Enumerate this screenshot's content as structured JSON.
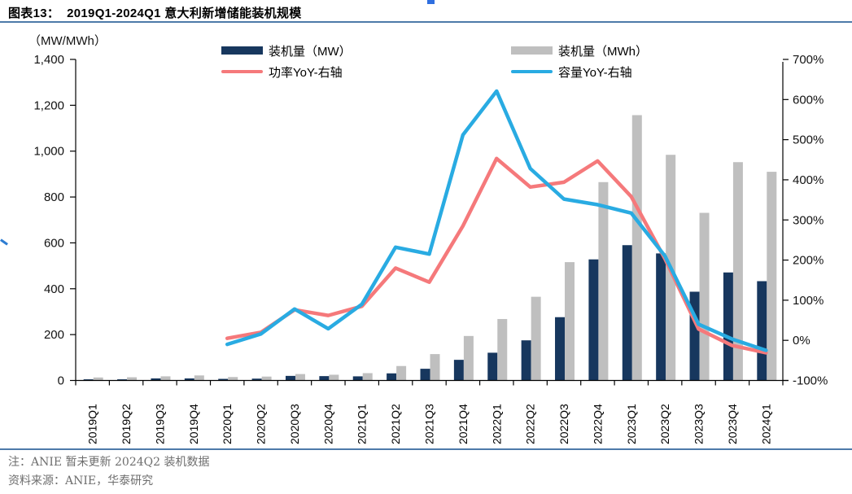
{
  "header": {
    "title": "图表13：  2019Q1-2024Q1 意大利新增储能装机规模"
  },
  "unit_label": "（MW/MWh）",
  "legend": [
    {
      "label": "装机量（MW）",
      "type": "bar",
      "color": "#17375E"
    },
    {
      "label": "装机量（MWh）",
      "type": "bar",
      "color": "#BFBFBF"
    },
    {
      "label": "功率YoY-右轴",
      "type": "line",
      "color": "#F5797B"
    },
    {
      "label": "容量YoY-右轴",
      "type": "line",
      "color": "#29ABE2"
    }
  ],
  "chart_data": {
    "type": "bar",
    "subtype": "clustered-bars-with-yoy-lines",
    "categories": [
      "2019Q1",
      "2019Q2",
      "2019Q3",
      "2019Q4",
      "2020Q1",
      "2020Q2",
      "2020Q3",
      "2020Q4",
      "2021Q1",
      "2021Q2",
      "2021Q3",
      "2021Q4",
      "2022Q1",
      "2022Q2",
      "2022Q3",
      "2022Q4",
      "2023Q1",
      "2023Q2",
      "2023Q3",
      "2023Q4",
      "2024Q1"
    ],
    "series": [
      {
        "name": "装机量（MW）",
        "type": "bar",
        "axis": "left",
        "color": "#17375E",
        "values": [
          5,
          5,
          9,
          9,
          7,
          8,
          20,
          19,
          18,
          31,
          51,
          90,
          121,
          175,
          276,
          528,
          590,
          554,
          387,
          471,
          433
        ]
      },
      {
        "name": "装机量（MWh）",
        "type": "bar",
        "axis": "left",
        "color": "#BFBFBF",
        "values": [
          13,
          14,
          18,
          22,
          15,
          17,
          28,
          25,
          32,
          63,
          115,
          194,
          268,
          365,
          516,
          865,
          1157,
          984,
          731,
          952,
          910
        ]
      },
      {
        "name": "功率YoY-右轴",
        "type": "line",
        "axis": "right",
        "color": "#F5797B",
        "values": [
          null,
          null,
          null,
          null,
          5,
          20,
          76,
          62,
          85,
          180,
          145,
          285,
          453,
          382,
          394,
          447,
          358,
          203,
          28,
          -13,
          -31
        ]
      },
      {
        "name": "容量YoY-右轴",
        "type": "line",
        "axis": "right",
        "color": "#29ABE2",
        "values": [
          null,
          null,
          null,
          null,
          -10,
          16,
          78,
          29,
          90,
          232,
          215,
          512,
          621,
          428,
          352,
          338,
          317,
          210,
          40,
          3,
          -25
        ]
      }
    ],
    "left_axis": {
      "min": 0,
      "max": 1400,
      "tick_values": [
        0,
        200,
        400,
        600,
        800,
        1000,
        1200,
        1400
      ],
      "tick_labels": [
        "0",
        "200",
        "400",
        "600",
        "800",
        "1,000",
        "1,200",
        "1,400"
      ]
    },
    "right_axis": {
      "min": -100,
      "max": 700,
      "tick_values": [
        -100,
        0,
        100,
        200,
        300,
        400,
        500,
        600,
        700
      ],
      "tick_labels": [
        "-100%",
        "0%",
        "100%",
        "200%",
        "300%",
        "400%",
        "500%",
        "600%",
        "700%"
      ]
    },
    "grid": false,
    "legend_position": "top"
  },
  "footer": {
    "note": "注：ANIE 暂未更新 2024Q2 装机数据",
    "source": "资料来源：ANIE，华泰研究"
  }
}
